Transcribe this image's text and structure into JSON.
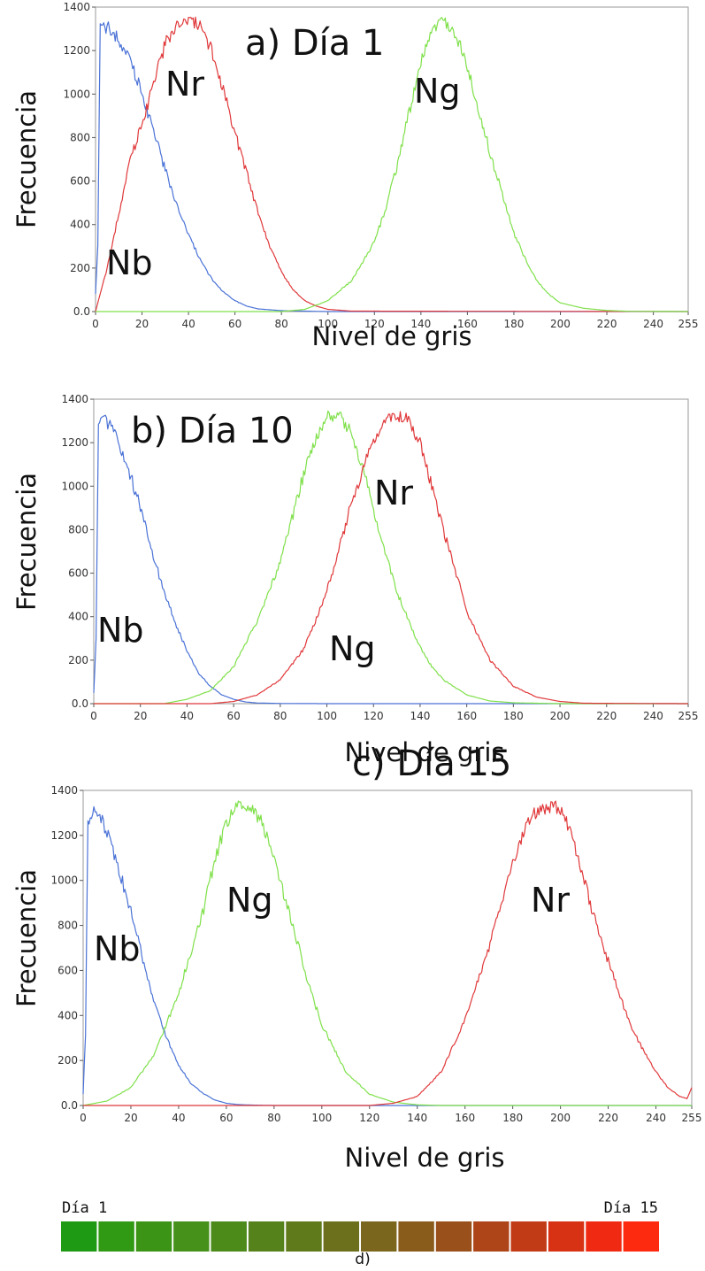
{
  "chart_data": [
    {
      "type": "line",
      "title": "a) Día 1",
      "xlabel": "Nivel de gris",
      "ylabel": "Frecuencia",
      "xlim": [
        0,
        255
      ],
      "ylim": [
        0,
        1400
      ],
      "x_ticks": [
        "0",
        "20",
        "40",
        "60",
        "80",
        "100",
        "120",
        "140",
        "160",
        "180",
        "200",
        "220",
        "240",
        "255"
      ],
      "y_ticks": [
        "0.0",
        "200",
        "400",
        "600",
        "800",
        "1000",
        "1200",
        "1400"
      ],
      "series": [
        {
          "name": "Nb",
          "color": "#4a72d6",
          "x": [
            0,
            1,
            2,
            5,
            10,
            15,
            20,
            25,
            30,
            35,
            40,
            45,
            50,
            55,
            60,
            65,
            70,
            80,
            90,
            100,
            120,
            255
          ],
          "y": [
            80,
            300,
            1300,
            1310,
            1250,
            1150,
            1000,
            830,
            650,
            490,
            350,
            240,
            150,
            90,
            50,
            25,
            12,
            4,
            2,
            0,
            0,
            0
          ]
        },
        {
          "name": "Nr",
          "color": "#e0383a",
          "x": [
            0,
            5,
            10,
            15,
            20,
            25,
            30,
            35,
            40,
            45,
            50,
            55,
            60,
            65,
            70,
            75,
            80,
            85,
            90,
            95,
            100,
            110,
            255
          ],
          "y": [
            0,
            200,
            450,
            700,
            860,
            1050,
            1230,
            1320,
            1330,
            1320,
            1200,
            1020,
            820,
            640,
            450,
            300,
            180,
            100,
            50,
            25,
            10,
            2,
            0
          ]
        },
        {
          "name": "Ng",
          "color": "#7fe04a",
          "x": [
            0,
            80,
            90,
            100,
            110,
            120,
            125,
            130,
            135,
            140,
            145,
            150,
            155,
            160,
            165,
            170,
            175,
            180,
            185,
            190,
            195,
            200,
            210,
            220,
            230,
            255
          ],
          "y": [
            0,
            0,
            10,
            50,
            140,
            320,
            480,
            680,
            920,
            1150,
            1310,
            1330,
            1280,
            1120,
            930,
            720,
            540,
            360,
            240,
            140,
            80,
            40,
            15,
            5,
            1,
            0
          ]
        }
      ]
    },
    {
      "type": "line",
      "title": "b) Día 10",
      "xlabel": "Nivel de gris",
      "ylabel": "Frecuencia",
      "xlim": [
        0,
        255
      ],
      "ylim": [
        0,
        1400
      ],
      "x_ticks": [
        "0",
        "20",
        "40",
        "60",
        "80",
        "100",
        "120",
        "140",
        "160",
        "180",
        "200",
        "220",
        "240",
        "255"
      ],
      "y_ticks": [
        "0.0",
        "200",
        "400",
        "600",
        "800",
        "1000",
        "1200",
        "1400"
      ],
      "series": [
        {
          "name": "Nb",
          "color": "#4a72d6",
          "x": [
            0,
            1,
            2,
            5,
            10,
            15,
            20,
            25,
            30,
            35,
            40,
            45,
            50,
            55,
            60,
            65,
            70,
            80,
            100,
            255
          ],
          "y": [
            50,
            300,
            1300,
            1310,
            1220,
            1080,
            900,
            700,
            520,
            370,
            240,
            140,
            80,
            40,
            20,
            8,
            3,
            1,
            0,
            0
          ]
        },
        {
          "name": "Ng",
          "color": "#7fe04a",
          "x": [
            0,
            30,
            40,
            50,
            60,
            70,
            80,
            85,
            90,
            95,
            100,
            105,
            110,
            115,
            120,
            125,
            130,
            135,
            140,
            145,
            150,
            160,
            170,
            180,
            200,
            255
          ],
          "y": [
            0,
            0,
            20,
            60,
            170,
            380,
            650,
            850,
            1050,
            1220,
            1320,
            1330,
            1250,
            1100,
            900,
            700,
            520,
            380,
            260,
            170,
            110,
            40,
            12,
            4,
            0,
            0
          ]
        },
        {
          "name": "Nr",
          "color": "#e0383a",
          "x": [
            0,
            50,
            60,
            70,
            80,
            90,
            95,
            100,
            105,
            110,
            115,
            120,
            125,
            130,
            135,
            140,
            145,
            150,
            155,
            160,
            170,
            180,
            190,
            200,
            210,
            255
          ],
          "y": [
            0,
            0,
            10,
            40,
            110,
            250,
            380,
            520,
            700,
            900,
            1060,
            1220,
            1310,
            1330,
            1300,
            1200,
            1000,
            800,
            620,
            420,
            200,
            80,
            30,
            10,
            2,
            0
          ]
        }
      ]
    },
    {
      "type": "line",
      "title": "c) Día 15",
      "xlabel": "Nivel de gris",
      "ylabel": "Frecuencia",
      "xlim": [
        0,
        255
      ],
      "ylim": [
        0,
        1400
      ],
      "x_ticks": [
        "0",
        "20",
        "40",
        "60",
        "80",
        "100",
        "120",
        "140",
        "160",
        "180",
        "200",
        "220",
        "240",
        "255"
      ],
      "y_ticks": [
        "0.0",
        "200",
        "400",
        "600",
        "800",
        "1000",
        "1200",
        "1400"
      ],
      "series": [
        {
          "name": "Nb",
          "color": "#4a72d6",
          "x": [
            0,
            1,
            2,
            5,
            10,
            15,
            20,
            25,
            30,
            35,
            40,
            45,
            50,
            55,
            60,
            65,
            70,
            80,
            100,
            255
          ],
          "y": [
            50,
            320,
            1250,
            1320,
            1220,
            1050,
            860,
            650,
            450,
            300,
            180,
            100,
            55,
            25,
            10,
            4,
            2,
            0,
            0,
            0
          ]
        },
        {
          "name": "Ng",
          "color": "#7fe04a",
          "x": [
            0,
            10,
            20,
            30,
            40,
            50,
            55,
            60,
            65,
            70,
            75,
            80,
            85,
            90,
            95,
            100,
            110,
            120,
            130,
            140,
            150,
            255
          ],
          "y": [
            0,
            20,
            80,
            230,
            500,
            850,
            1080,
            1260,
            1330,
            1330,
            1260,
            1100,
            900,
            720,
            520,
            360,
            150,
            50,
            15,
            3,
            0,
            0
          ]
        },
        {
          "name": "Nr",
          "color": "#e0383a",
          "x": [
            0,
            120,
            130,
            140,
            150,
            160,
            170,
            175,
            180,
            185,
            190,
            195,
            200,
            205,
            210,
            215,
            220,
            225,
            230,
            235,
            240,
            245,
            250,
            253,
            255
          ],
          "y": [
            0,
            0,
            10,
            40,
            150,
            380,
            700,
            900,
            1080,
            1230,
            1310,
            1330,
            1320,
            1200,
            1000,
            800,
            640,
            480,
            340,
            240,
            150,
            80,
            40,
            30,
            80
          ]
        }
      ]
    }
  ],
  "color_scale": {
    "start_label": "Día 1",
    "end_label": "Día 15",
    "caption": "d)",
    "swatches": [
      "#1f9a14",
      "#309a14",
      "#3c9416",
      "#46911a",
      "#4c8a1a",
      "#55821a",
      "#5f7a1a",
      "#6c701c",
      "#7a661c",
      "#8a5c1c",
      "#9a501a",
      "#ad4519",
      "#c23b17",
      "#d83214",
      "#f02a12",
      "#fe2a10"
    ]
  }
}
